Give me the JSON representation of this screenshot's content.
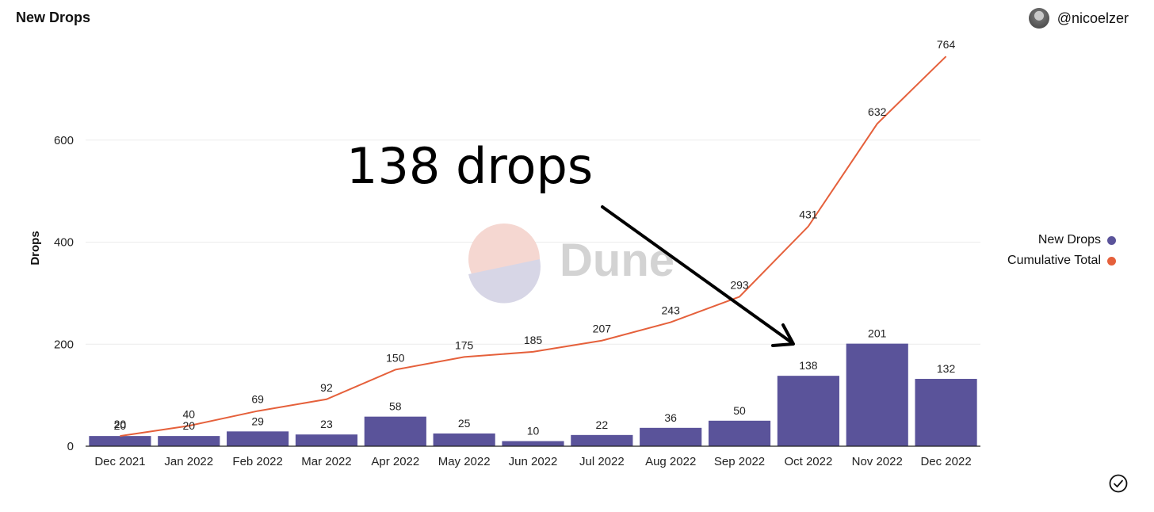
{
  "header": {
    "title": "New Drops",
    "username": "@nicoelzer"
  },
  "watermark": "Dune",
  "annotation": {
    "text": "138 drops"
  },
  "legend": [
    {
      "label": "New Drops",
      "color": "#5a539a"
    },
    {
      "label": "Cumulative Total",
      "color": "#e5603b"
    }
  ],
  "chart_data": {
    "type": "bar",
    "ylabel": "Drops",
    "ylim": [
      0,
      800
    ],
    "yticks": [
      0,
      200,
      400,
      600
    ],
    "grid": true,
    "legend_position": "right",
    "categories": [
      "Dec 2021",
      "Jan 2022",
      "Feb 2022",
      "Mar 2022",
      "Apr 2022",
      "May 2022",
      "Jun 2022",
      "Jul 2022",
      "Aug 2022",
      "Sep 2022",
      "Oct 2022",
      "Nov 2022",
      "Dec 2022"
    ],
    "series": [
      {
        "name": "New Drops",
        "type": "bar",
        "color": "#5a539a",
        "values": [
          20,
          20,
          29,
          23,
          58,
          25,
          10,
          22,
          36,
          50,
          138,
          201,
          132
        ]
      },
      {
        "name": "Cumulative Total",
        "type": "line",
        "color": "#e5603b",
        "values": [
          20,
          40,
          69,
          92,
          150,
          175,
          185,
          207,
          243,
          293,
          431,
          632,
          764
        ]
      }
    ]
  }
}
